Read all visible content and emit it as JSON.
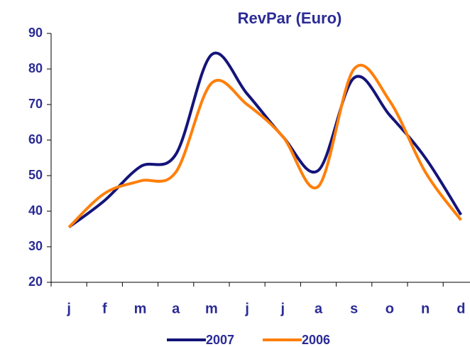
{
  "chart_data": {
    "type": "line",
    "title": "RevPar (Euro)",
    "categories": [
      "j",
      "f",
      "m",
      "a",
      "m",
      "j",
      "j",
      "a",
      "s",
      "o",
      "n",
      "d"
    ],
    "series": [
      {
        "name": "2007",
        "color": "#14147a",
        "values": [
          35.5,
          43,
          52.5,
          56,
          84,
          73,
          61,
          51.5,
          77.5,
          67,
          55,
          39
        ]
      },
      {
        "name": "2006",
        "color": "#ff7f0a",
        "values": [
          35.5,
          45,
          48.5,
          51,
          76,
          70,
          61,
          47,
          80,
          71,
          51,
          37.5
        ]
      }
    ],
    "ylim": [
      20,
      90
    ],
    "yticks": [
      20,
      30,
      40,
      50,
      60,
      70,
      80,
      90
    ],
    "smooth": true
  }
}
